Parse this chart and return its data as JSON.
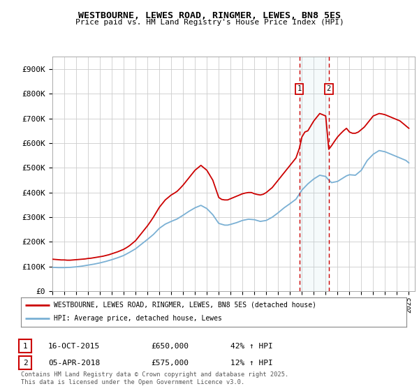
{
  "title": "WESTBOURNE, LEWES ROAD, RINGMER, LEWES, BN8 5ES",
  "subtitle": "Price paid vs. HM Land Registry's House Price Index (HPI)",
  "ylabel_values": [
    "£0",
    "£100K",
    "£200K",
    "£300K",
    "£400K",
    "£500K",
    "£600K",
    "£700K",
    "£800K",
    "£900K"
  ],
  "yticks": [
    0,
    100000,
    200000,
    300000,
    400000,
    500000,
    600000,
    700000,
    800000,
    900000
  ],
  "ylim": [
    0,
    950000
  ],
  "xlim_start": 1995.0,
  "xlim_end": 2025.5,
  "red_color": "#cc0000",
  "blue_color": "#7ab0d4",
  "marker1_date": 2015.79,
  "marker2_date": 2018.26,
  "marker1_price": 650000,
  "marker2_price": 575000,
  "marker1_label": "16-OCT-2015",
  "marker2_label": "05-APR-2018",
  "marker1_hpi": "42% ↑ HPI",
  "marker2_hpi": "12% ↑ HPI",
  "legend_line1": "WESTBOURNE, LEWES ROAD, RINGMER, LEWES, BN8 5ES (detached house)",
  "legend_line2": "HPI: Average price, detached house, Lewes",
  "footnote": "Contains HM Land Registry data © Crown copyright and database right 2025.\nThis data is licensed under the Open Government Licence v3.0.",
  "background_color": "#ffffff",
  "grid_color": "#cccccc",
  "red_series_x": [
    1995.0,
    1995.25,
    1995.5,
    1995.75,
    1996.0,
    1996.25,
    1996.5,
    1996.75,
    1997.0,
    1997.25,
    1997.5,
    1997.75,
    1998.0,
    1998.25,
    1998.5,
    1998.75,
    1999.0,
    1999.25,
    1999.5,
    1999.75,
    2000.0,
    2000.25,
    2000.5,
    2000.75,
    2001.0,
    2001.25,
    2001.5,
    2001.75,
    2002.0,
    2002.25,
    2002.5,
    2002.75,
    2003.0,
    2003.25,
    2003.5,
    2003.75,
    2004.0,
    2004.25,
    2004.5,
    2004.75,
    2005.0,
    2005.25,
    2005.5,
    2005.75,
    2006.0,
    2006.25,
    2006.5,
    2006.75,
    2007.0,
    2007.25,
    2007.5,
    2007.75,
    2008.0,
    2008.25,
    2008.5,
    2008.75,
    2009.0,
    2009.25,
    2009.5,
    2009.75,
    2010.0,
    2010.25,
    2010.5,
    2010.75,
    2011.0,
    2011.25,
    2011.5,
    2011.75,
    2012.0,
    2012.25,
    2012.5,
    2012.75,
    2013.0,
    2013.25,
    2013.5,
    2013.75,
    2014.0,
    2014.25,
    2014.5,
    2014.75,
    2015.0,
    2015.25,
    2015.5,
    2015.79,
    2016.0,
    2016.25,
    2016.5,
    2016.75,
    2017.0,
    2017.25,
    2017.5,
    2017.75,
    2018.0,
    2018.26,
    2018.5,
    2018.75,
    2019.0,
    2019.25,
    2019.5,
    2019.75,
    2020.0,
    2020.25,
    2020.5,
    2020.75,
    2021.0,
    2021.25,
    2021.5,
    2021.75,
    2022.0,
    2022.25,
    2022.5,
    2022.75,
    2023.0,
    2023.25,
    2023.5,
    2023.75,
    2024.0,
    2024.25,
    2024.5,
    2024.75,
    2025.0
  ],
  "red_series_y": [
    130000,
    129000,
    128000,
    127000,
    127000,
    126000,
    126000,
    127000,
    128000,
    129000,
    130000,
    131000,
    133000,
    134000,
    136000,
    138000,
    140000,
    142000,
    145000,
    148000,
    152000,
    156000,
    160000,
    165000,
    170000,
    177000,
    185000,
    195000,
    205000,
    220000,
    235000,
    250000,
    265000,
    282000,
    300000,
    320000,
    340000,
    355000,
    370000,
    380000,
    390000,
    397000,
    405000,
    417000,
    430000,
    445000,
    460000,
    475000,
    490000,
    500000,
    510000,
    500000,
    490000,
    470000,
    450000,
    415000,
    380000,
    372000,
    370000,
    370000,
    375000,
    380000,
    385000,
    390000,
    395000,
    398000,
    400000,
    400000,
    395000,
    392000,
    390000,
    393000,
    400000,
    410000,
    420000,
    435000,
    450000,
    465000,
    480000,
    495000,
    510000,
    525000,
    540000,
    580000,
    625000,
    645000,
    650000,
    670000,
    690000,
    705000,
    720000,
    715000,
    710000,
    575000,
    590000,
    608000,
    625000,
    638000,
    650000,
    660000,
    645000,
    640000,
    640000,
    645000,
    655000,
    665000,
    680000,
    695000,
    710000,
    715000,
    720000,
    718000,
    715000,
    710000,
    705000,
    700000,
    695000,
    690000,
    680000,
    670000,
    660000
  ],
  "blue_series_x": [
    1995.0,
    1995.25,
    1995.5,
    1995.75,
    1996.0,
    1996.25,
    1996.5,
    1996.75,
    1997.0,
    1997.25,
    1997.5,
    1997.75,
    1998.0,
    1998.25,
    1998.5,
    1998.75,
    1999.0,
    1999.25,
    1999.5,
    1999.75,
    2000.0,
    2000.25,
    2000.5,
    2000.75,
    2001.0,
    2001.25,
    2001.5,
    2001.75,
    2002.0,
    2002.25,
    2002.5,
    2002.75,
    2003.0,
    2003.25,
    2003.5,
    2003.75,
    2004.0,
    2004.25,
    2004.5,
    2004.75,
    2005.0,
    2005.25,
    2005.5,
    2005.75,
    2006.0,
    2006.25,
    2006.5,
    2006.75,
    2007.0,
    2007.25,
    2007.5,
    2007.75,
    2008.0,
    2008.25,
    2008.5,
    2008.75,
    2009.0,
    2009.25,
    2009.5,
    2009.75,
    2010.0,
    2010.25,
    2010.5,
    2010.75,
    2011.0,
    2011.25,
    2011.5,
    2011.75,
    2012.0,
    2012.25,
    2012.5,
    2012.75,
    2013.0,
    2013.25,
    2013.5,
    2013.75,
    2014.0,
    2014.25,
    2014.5,
    2014.75,
    2015.0,
    2015.25,
    2015.5,
    2015.75,
    2016.0,
    2016.25,
    2016.5,
    2016.75,
    2017.0,
    2017.25,
    2017.5,
    2017.75,
    2018.0,
    2018.26,
    2018.5,
    2018.75,
    2019.0,
    2019.25,
    2019.5,
    2019.75,
    2020.0,
    2020.25,
    2020.5,
    2020.75,
    2021.0,
    2021.25,
    2021.5,
    2021.75,
    2022.0,
    2022.25,
    2022.5,
    2022.75,
    2023.0,
    2023.25,
    2023.5,
    2023.75,
    2024.0,
    2024.25,
    2024.5,
    2024.75,
    2025.0
  ],
  "blue_series_y": [
    97000,
    96500,
    96000,
    96000,
    96000,
    96500,
    97000,
    98000,
    99000,
    100500,
    102000,
    104000,
    106000,
    108000,
    110000,
    112500,
    115000,
    118000,
    121000,
    124500,
    128000,
    132000,
    136000,
    140500,
    145000,
    151500,
    158000,
    165000,
    172000,
    181500,
    191000,
    200500,
    210000,
    220000,
    230000,
    242500,
    255000,
    263500,
    272000,
    277500,
    283000,
    288000,
    293000,
    300500,
    308000,
    316000,
    324000,
    331000,
    338000,
    343000,
    348000,
    341500,
    335000,
    322500,
    310000,
    292500,
    275000,
    271500,
    268000,
    268000,
    271000,
    274500,
    278000,
    282500,
    287000,
    289500,
    292000,
    291000,
    290000,
    286500,
    283000,
    285000,
    287000,
    293500,
    300000,
    309000,
    318000,
    328000,
    338000,
    346500,
    355000,
    364000,
    373000,
    391500,
    410000,
    422500,
    435000,
    445000,
    455000,
    462500,
    470000,
    467500,
    465000,
    450000,
    440000,
    442500,
    445000,
    452500,
    460000,
    467500,
    472000,
    471000,
    470000,
    480000,
    490000,
    510000,
    530000,
    542500,
    555000,
    562500,
    570000,
    567500,
    565000,
    560000,
    555000,
    550000,
    545000,
    540000,
    535000,
    530000,
    520000
  ]
}
